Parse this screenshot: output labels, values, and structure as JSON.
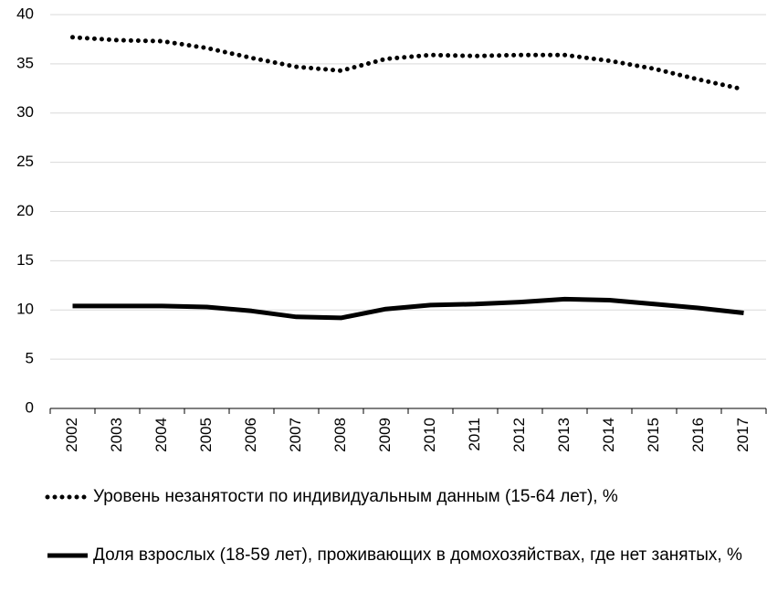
{
  "chart_data": {
    "type": "line",
    "categories": [
      "2002",
      "2003",
      "2004",
      "2005",
      "2006",
      "2007",
      "2008",
      "2009",
      "2010",
      "2011",
      "2012",
      "2013",
      "2014",
      "2015",
      "2016",
      "2017"
    ],
    "series": [
      {
        "name": "Уровень незанятости по индивидуальным данным (15-64 лет), %",
        "color": "#000000",
        "line_style": "dotted",
        "values": [
          37.7,
          37.4,
          37.3,
          36.6,
          35.6,
          34.7,
          34.3,
          35.5,
          35.9,
          35.8,
          35.9,
          35.9,
          35.3,
          34.5,
          33.4,
          32.4
        ]
      },
      {
        "name": "Доля взрослых (18-59 лет), проживающих в домохозяйствах, где нет занятых, %",
        "color": "#000000",
        "line_style": "solid",
        "values": [
          10.4,
          10.4,
          10.4,
          10.3,
          9.9,
          9.3,
          9.2,
          10.1,
          10.5,
          10.6,
          10.8,
          11.1,
          11.0,
          10.6,
          10.2,
          9.7
        ]
      }
    ],
    "ylim": [
      0,
      40
    ],
    "yticks": [
      0,
      5,
      10,
      15,
      20,
      25,
      30,
      35,
      40
    ],
    "grid": true,
    "legend": "bottom"
  }
}
